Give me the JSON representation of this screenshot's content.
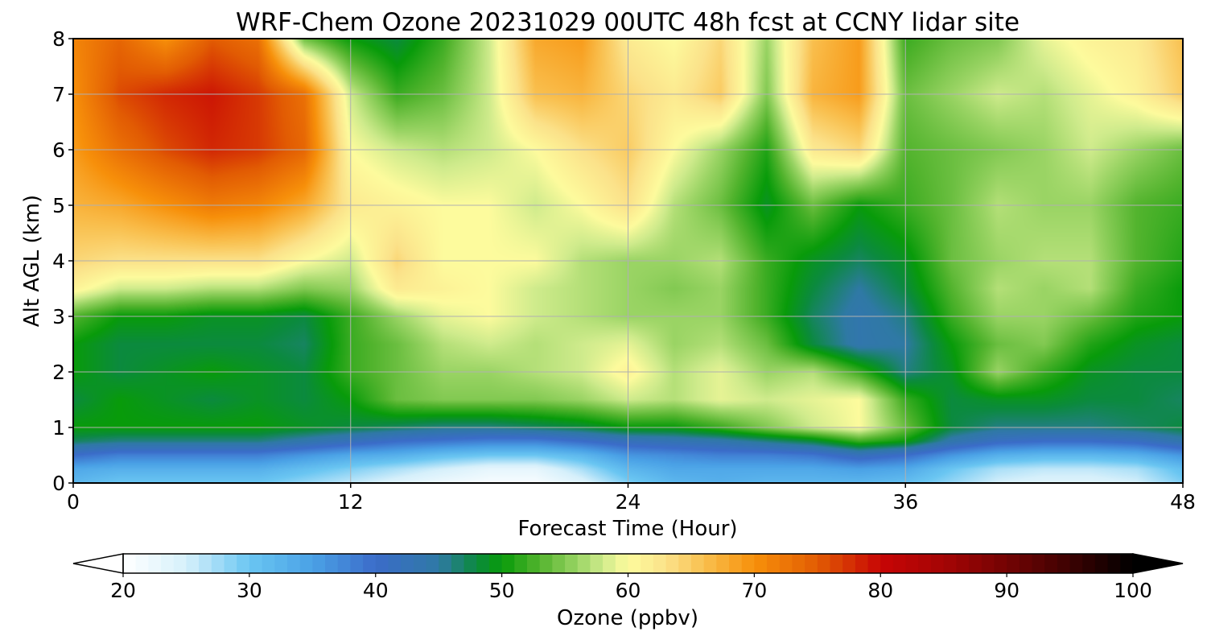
{
  "chart_data": {
    "type": "heatmap",
    "title": "WRF-Chem Ozone  20231029 00UTC 48h fcst at CCNY lidar site",
    "xlabel": "Forecast Time (Hour)",
    "ylabel": "Alt AGL (km)",
    "xlim": [
      0,
      48
    ],
    "ylim": [
      0,
      8
    ],
    "x_ticks": [
      "0",
      "12",
      "24",
      "36",
      "48"
    ],
    "y_ticks": [
      "0",
      "1",
      "2",
      "3",
      "4",
      "5",
      "6",
      "7",
      "8"
    ],
    "grid": true,
    "x": [
      0,
      2,
      4,
      6,
      8,
      10,
      12,
      14,
      16,
      18,
      20,
      22,
      24,
      26,
      28,
      30,
      32,
      34,
      36,
      38,
      40,
      42,
      44,
      46,
      48
    ],
    "y": [
      0,
      0.25,
      0.5,
      0.75,
      1,
      1.5,
      2,
      2.5,
      3,
      3.5,
      4,
      5,
      6,
      7,
      8
    ],
    "z": [
      [
        32,
        30,
        30,
        30,
        30,
        28,
        26,
        24,
        22,
        21,
        21,
        24,
        29,
        32,
        33,
        32,
        32,
        32,
        31,
        28,
        25,
        24,
        24,
        25,
        29
      ],
      [
        34,
        33,
        33,
        33,
        33,
        31,
        29,
        27,
        25,
        23,
        23,
        27,
        32,
        34,
        34,
        34,
        34,
        35,
        34,
        30,
        27,
        26,
        26,
        27,
        31
      ],
      [
        40,
        38,
        38,
        38,
        38,
        36,
        34,
        33,
        31,
        30,
        30,
        32,
        36,
        37,
        38,
        38,
        39,
        42,
        40,
        36,
        33,
        32,
        32,
        33,
        36
      ],
      [
        47,
        46,
        46,
        46,
        46,
        44,
        42,
        40,
        39,
        38,
        38,
        40,
        42,
        43,
        44,
        46,
        48,
        52,
        50,
        44,
        41,
        40,
        40,
        41,
        44
      ],
      [
        50,
        50,
        50,
        50,
        50,
        49,
        48,
        47,
        46,
        46,
        47,
        48,
        50,
        50,
        52,
        55,
        58,
        60,
        54,
        48,
        46,
        46,
        46,
        47,
        48
      ],
      [
        48,
        50,
        49,
        48,
        49,
        48,
        50,
        54,
        55,
        55,
        55,
        56,
        58,
        57,
        59,
        58,
        59,
        60,
        52,
        48,
        49,
        49,
        48,
        48,
        47
      ],
      [
        50,
        48,
        49,
        50,
        49,
        48,
        52,
        54,
        56,
        56,
        57,
        58,
        61,
        57,
        59,
        56,
        57,
        52,
        46,
        49,
        56,
        52,
        49,
        48,
        48
      ],
      [
        50,
        48,
        48,
        48,
        48,
        47,
        52,
        54,
        57,
        58,
        57,
        58,
        59,
        56,
        57,
        54,
        48,
        44,
        45,
        50,
        54,
        55,
        51,
        49,
        48
      ],
      [
        53,
        50,
        50,
        49,
        49,
        48,
        52,
        56,
        59,
        60,
        58,
        57,
        56,
        56,
        56,
        52,
        47,
        44,
        46,
        52,
        56,
        56,
        54,
        51,
        50
      ],
      [
        61,
        58,
        58,
        57,
        57,
        55,
        56,
        62,
        61,
        60,
        58,
        57,
        56,
        55,
        56,
        52,
        48,
        45,
        48,
        53,
        57,
        56,
        57,
        52,
        50
      ],
      [
        64,
        63,
        63,
        63,
        63,
        60,
        58,
        64,
        60,
        60,
        60,
        57,
        56,
        56,
        57,
        52,
        49,
        47,
        49,
        54,
        56,
        57,
        57,
        53,
        51
      ],
      [
        67,
        68,
        70,
        72,
        71,
        68,
        62,
        61,
        60,
        60,
        58,
        60,
        63,
        57,
        54,
        49,
        54,
        50,
        52,
        54,
        57,
        56,
        56,
        53,
        52
      ],
      [
        69,
        73,
        76,
        78,
        77,
        74,
        60,
        58,
        57,
        58,
        60,
        63,
        65,
        60,
        56,
        51,
        62,
        64,
        53,
        54,
        55,
        56,
        58,
        56,
        54
      ],
      [
        70,
        76,
        78,
        79,
        77,
        73,
        58,
        52,
        54,
        58,
        66,
        67,
        64,
        62,
        65,
        55,
        67,
        69,
        54,
        56,
        58,
        57,
        59,
        61,
        65
      ],
      [
        71,
        74,
        70,
        75,
        73,
        54,
        50,
        48,
        52,
        58,
        68,
        69,
        62,
        60,
        64,
        56,
        66,
        69,
        52,
        54,
        55,
        59,
        61,
        62,
        66
      ]
    ],
    "colorbar": {
      "label": "Ozone  (ppbv)",
      "min": 20,
      "max": 100,
      "ticks": [
        "20",
        "30",
        "40",
        "50",
        "60",
        "70",
        "80",
        "90",
        "100"
      ],
      "extend": "both",
      "colors": [
        {
          "v": 20,
          "c": "#ffffff"
        },
        {
          "v": 25,
          "c": "#d6f0fb"
        },
        {
          "v": 30,
          "c": "#6ac6f2"
        },
        {
          "v": 35,
          "c": "#4aa1e6"
        },
        {
          "v": 40,
          "c": "#3b6cc9"
        },
        {
          "v": 45,
          "c": "#2f79a5"
        },
        {
          "v": 48,
          "c": "#0b8a3e"
        },
        {
          "v": 50,
          "c": "#089b0a"
        },
        {
          "v": 53,
          "c": "#53b42e"
        },
        {
          "v": 56,
          "c": "#9ad464"
        },
        {
          "v": 58,
          "c": "#cfeb8c"
        },
        {
          "v": 60,
          "c": "#fdfb9d"
        },
        {
          "v": 63,
          "c": "#fbe28a"
        },
        {
          "v": 66,
          "c": "#f9c04f"
        },
        {
          "v": 70,
          "c": "#f7900a"
        },
        {
          "v": 75,
          "c": "#e25c03"
        },
        {
          "v": 80,
          "c": "#c70505"
        },
        {
          "v": 85,
          "c": "#a50505"
        },
        {
          "v": 90,
          "c": "#730303"
        },
        {
          "v": 95,
          "c": "#3c0202"
        },
        {
          "v": 100,
          "c": "#000000"
        }
      ]
    }
  }
}
